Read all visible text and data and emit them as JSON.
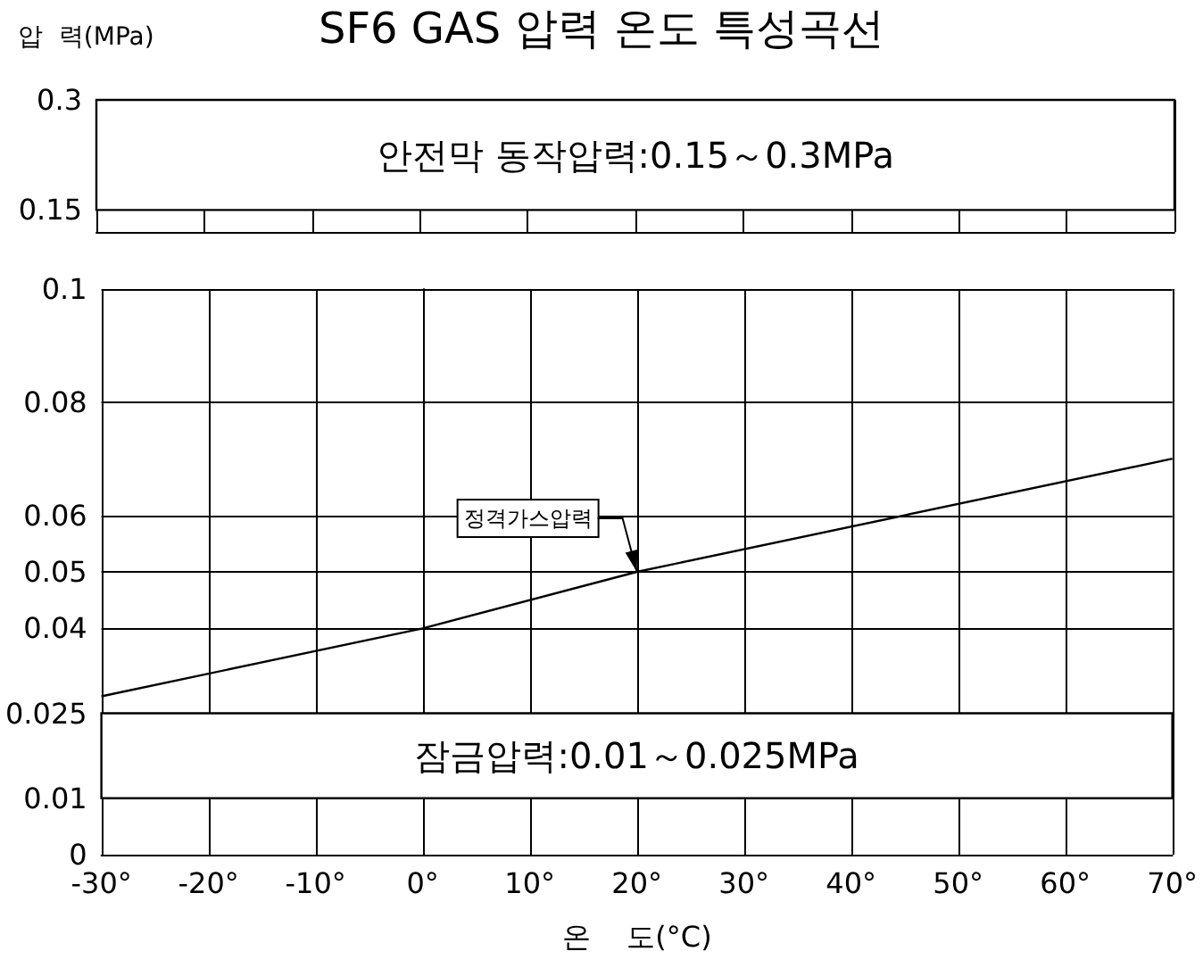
{
  "chart_data": [
    {
      "type": "line",
      "title": "SF6 GAS 압력 온도 특성곡선",
      "ylabel": "압  력(MPa)",
      "xlim": [
        -30,
        70
      ],
      "xticks": [
        -30,
        -20,
        -10,
        0,
        10,
        20,
        30,
        40,
        50,
        60,
        70
      ],
      "ylim": [
        0.12,
        0.3
      ],
      "yticks": [
        0.15,
        0.3
      ],
      "tick_labels": "y",
      "grid": true,
      "bands": [
        {
          "axis": "y",
          "from": 0.15,
          "to": 0.3,
          "label": "안전막 동작압력:0.15～0.3MPa",
          "color": "#ffffff"
        }
      ]
    },
    {
      "type": "line",
      "xlabel": "온    도(°C)",
      "xlim": [
        -30,
        70
      ],
      "xticks": [
        {
          "value": -30,
          "label": "-30°"
        },
        {
          "value": -20,
          "label": "-20°"
        },
        {
          "value": -10,
          "label": "-10°"
        },
        {
          "value": 0,
          "label": "0°"
        },
        {
          "value": 10,
          "label": "10°"
        },
        {
          "value": 20,
          "label": "20°"
        },
        {
          "value": 30,
          "label": "30°"
        },
        {
          "value": 40,
          "label": "40°"
        },
        {
          "value": 50,
          "label": "50°"
        },
        {
          "value": 60,
          "label": "60°"
        },
        {
          "value": 70,
          "label": "70°"
        }
      ],
      "ylim": [
        0,
        0.1
      ],
      "yticks": [
        0,
        0.01,
        0.025,
        0.04,
        0.05,
        0.06,
        0.08,
        0.1
      ],
      "grid": true,
      "marker": "none",
      "line_style": "solid",
      "x": [
        -30,
        0,
        20,
        70
      ],
      "series": [
        {
          "color": "#000000",
          "values": [
            0.028,
            0.04,
            0.05,
            0.07
          ]
        }
      ],
      "bands": [
        {
          "axis": "y",
          "from": 0.01,
          "to": 0.025,
          "label": "잠금압력:0.01～0.025MPa",
          "color": "#ffffff"
        }
      ],
      "annotations": [
        {
          "text": "정격가스압력",
          "x": 20,
          "y": 0.05
        }
      ]
    }
  ]
}
